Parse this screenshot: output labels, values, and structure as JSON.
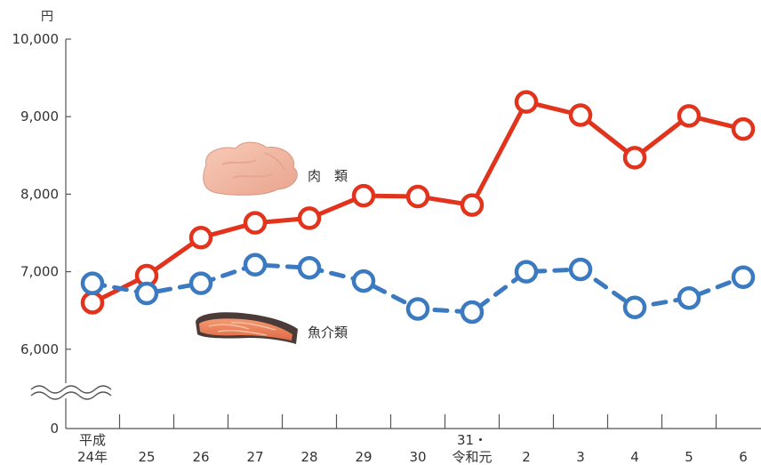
{
  "chart_data": {
    "type": "line",
    "unit": "円",
    "x": [
      "平成24年",
      "25",
      "26",
      "27",
      "28",
      "29",
      "30",
      "31・令和元",
      "2",
      "3",
      "4",
      "5",
      "6"
    ],
    "x_tick_lines": [
      [
        "平成",
        "24年"
      ],
      [
        "25"
      ],
      [
        "26"
      ],
      [
        "27"
      ],
      [
        "28"
      ],
      [
        "29"
      ],
      [
        "30"
      ],
      [
        "31・",
        "令和元"
      ],
      [
        "2"
      ],
      [
        "3"
      ],
      [
        "4"
      ],
      [
        "5"
      ],
      [
        "6"
      ]
    ],
    "y_ticks": [
      "10,000",
      "9,000",
      "8,000",
      "7,000",
      "6,000",
      "0"
    ],
    "y_tick_values": [
      10000,
      9000,
      8000,
      7000,
      6000,
      0
    ],
    "ylim": [
      5000,
      10000
    ],
    "axis_break": true,
    "series": [
      {
        "name": "肉　類",
        "color": "#e2341d",
        "line_style": "solid",
        "values": [
          6600,
          6950,
          7440,
          7630,
          7690,
          7980,
          7970,
          7860,
          9190,
          9020,
          8470,
          9010,
          8840
        ]
      },
      {
        "name": "魚介類",
        "color": "#3b7ac0",
        "line_style": "dashed",
        "values": [
          6850,
          6720,
          6850,
          7090,
          7050,
          6880,
          6520,
          6480,
          7000,
          7030,
          6540,
          6660,
          6930
        ]
      }
    ],
    "illustrations": [
      "meat-icon",
      "salmon-icon"
    ]
  }
}
